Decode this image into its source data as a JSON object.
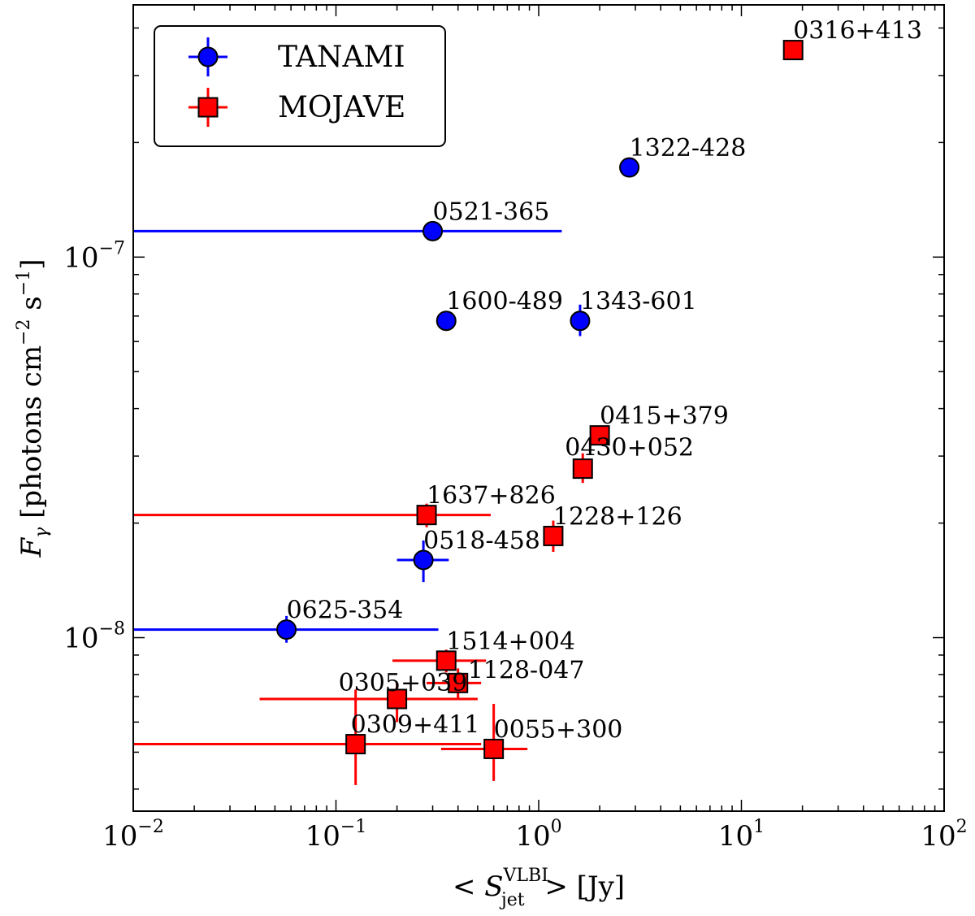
{
  "chart_data": {
    "type": "scatter",
    "xlabel_parts": {
      "prefix": "< ",
      "symbol": "S",
      "sub": "jet",
      "sup": "VLBI",
      "suffix": " > [Jy]"
    },
    "ylabel_parts": {
      "symbol": "F",
      "sub": "γ",
      "text": " [photons cm",
      "exp1": "−2",
      "mid": " s",
      "exp2": "−1",
      "end": "]"
    },
    "x_scale": "log",
    "y_scale": "log",
    "xlim": [
      0.01,
      100
    ],
    "ylim": [
      3.5e-09,
      4.6e-07
    ],
    "x_ticks": [
      {
        "value": 0.01,
        "base": "10",
        "exp": "−2"
      },
      {
        "value": 0.1,
        "base": "10",
        "exp": "−1"
      },
      {
        "value": 1,
        "base": "10",
        "exp": "0"
      },
      {
        "value": 10,
        "base": "10",
        "exp": "1"
      },
      {
        "value": 100,
        "base": "10",
        "exp": "2"
      }
    ],
    "y_ticks": [
      {
        "value": 1e-08,
        "base": "10",
        "exp": "−8"
      },
      {
        "value": 1e-07,
        "base": "10",
        "exp": "−7"
      }
    ],
    "grid": false,
    "legend_position": "top-left",
    "series": [
      {
        "name": "TANAMI",
        "color": "#0000ff",
        "marker": "circle",
        "points": [
          {
            "label": "1322-428",
            "x": 2.8,
            "y": 1.72e-07,
            "xerr": [
              2.8,
              2.8
            ],
            "yerr": [
              1.72e-07,
              1.72e-07
            ]
          },
          {
            "label": "0521-365",
            "x": 0.3,
            "y": 1.17e-07,
            "xerr": [
              0.001,
              1.3
            ],
            "yerr": [
              1.17e-07,
              1.17e-07
            ]
          },
          {
            "label": "1600-489",
            "x": 0.35,
            "y": 6.8e-08,
            "xerr": [
              0.35,
              0.35
            ],
            "yerr": [
              6.8e-08,
              6.8e-08
            ]
          },
          {
            "label": "1343-601",
            "x": 1.6,
            "y": 6.8e-08,
            "xerr": [
              1.6,
              1.6
            ],
            "yerr": [
              6.2e-08,
              7.5e-08
            ]
          },
          {
            "label": "0518-458",
            "x": 0.27,
            "y": 1.6e-08,
            "xerr": [
              0.2,
              0.36
            ],
            "yerr": [
              1.4e-08,
              1.8e-08
            ]
          },
          {
            "label": "0625-354",
            "x": 0.057,
            "y": 1.05e-08,
            "xerr": [
              0.001,
              0.32
            ],
            "yerr": [
              9.7e-09,
              1.14e-08
            ]
          }
        ]
      },
      {
        "name": "MOJAVE",
        "color": "#ff0000",
        "marker": "square",
        "points": [
          {
            "label": "0316+413",
            "x": 18,
            "y": 3.5e-07,
            "xerr": [
              18,
              18
            ],
            "yerr": [
              3.5e-07,
              3.5e-07
            ]
          },
          {
            "label": "0415+379",
            "x": 2.0,
            "y": 3.4e-08,
            "xerr": [
              2.0,
              2.0
            ],
            "yerr": [
              3.4e-08,
              3.4e-08
            ]
          },
          {
            "label": "0430+052",
            "x": 1.65,
            "y": 2.78e-08,
            "xerr": [
              1.65,
              1.65
            ],
            "yerr": [
              2.55e-08,
              3.05e-08
            ]
          },
          {
            "label": "1637+826",
            "x": 0.28,
            "y": 2.1e-08,
            "xerr": [
              0.001,
              0.58
            ],
            "yerr": [
              1.95e-08,
              2.25e-08
            ]
          },
          {
            "label": "1228+126",
            "x": 1.18,
            "y": 1.85e-08,
            "xerr": [
              1.18,
              1.18
            ],
            "yerr": [
              1.68e-08,
              2.03e-08
            ]
          },
          {
            "label": "1514+004",
            "x": 0.35,
            "y": 8.7e-09,
            "xerr": [
              0.19,
              0.55
            ],
            "yerr": [
              8.1e-09,
              9.3e-09
            ]
          },
          {
            "label": "1128-047",
            "x": 0.4,
            "y": 7.6e-09,
            "xerr": [
              0.28,
              0.52
            ],
            "yerr": [
              6.9e-09,
              8.3e-09
            ]
          },
          {
            "label": "0305+039",
            "x": 0.2,
            "y": 6.9e-09,
            "xerr": [
              0.042,
              0.5
            ],
            "yerr": [
              6e-09,
              7.6e-09
            ]
          },
          {
            "label": "0309+411",
            "x": 0.125,
            "y": 5.25e-09,
            "xerr": [
              0.001,
              0.52
            ],
            "yerr": [
              4.1e-09,
              7.3e-09
            ]
          },
          {
            "label": "0055+300",
            "x": 0.6,
            "y": 5.1e-09,
            "xerr": [
              0.33,
              0.88
            ],
            "yerr": [
              4.2e-09,
              6.7e-09
            ]
          }
        ]
      }
    ]
  }
}
